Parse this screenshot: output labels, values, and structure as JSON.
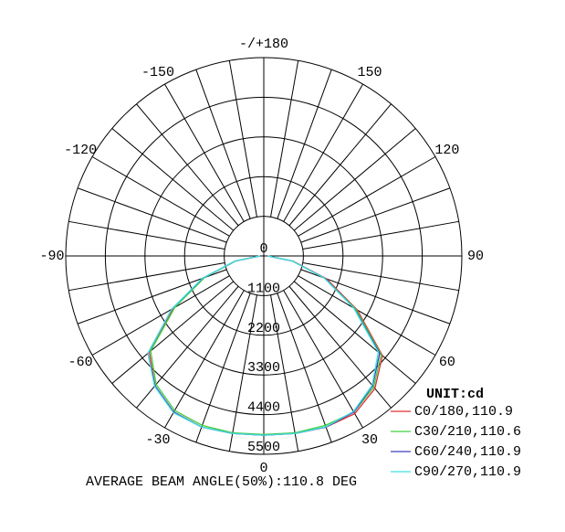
{
  "chart_data": {
    "type": "polar",
    "rlim": [
      0,
      5500
    ],
    "rticks": [
      0,
      1100,
      2200,
      3300,
      4400,
      5500
    ],
    "thetaticks": [
      0,
      30,
      60,
      90,
      120,
      150,
      {
        "value": 180,
        "label": "-/+180"
      },
      -150,
      -120,
      -90,
      -60,
      -30
    ],
    "theta": [
      -90,
      -80,
      -70,
      -60,
      -50,
      -40,
      -30,
      -20,
      -10,
      0,
      10,
      20,
      30,
      40,
      50,
      60,
      70,
      80,
      90
    ],
    "legend_title": "UNIT:cd",
    "series": [
      {
        "name": "C0/180,110.9",
        "color": "#e03030",
        "values": [
          100,
          800,
          1800,
          2900,
          4150,
          4700,
          5000,
          5050,
          5000,
          4970,
          5000,
          5050,
          5050,
          4800,
          4300,
          3000,
          1850,
          820,
          100
        ]
      },
      {
        "name": "C30/210,110.6",
        "color": "#40d040",
        "values": [
          100,
          780,
          1750,
          2850,
          4100,
          4650,
          4950,
          5000,
          4980,
          4950,
          4980,
          5000,
          5000,
          4750,
          4250,
          2950,
          1800,
          800,
          100
        ]
      },
      {
        "name": "C60/240,110.9",
        "color": "#4040c0",
        "values": [
          100,
          800,
          1800,
          2950,
          4200,
          4700,
          5000,
          5050,
          5000,
          4970,
          5000,
          5050,
          5000,
          4700,
          4200,
          2900,
          1800,
          800,
          100
        ]
      },
      {
        "name": "C90/270,110.9",
        "color": "#40e0e0",
        "values": [
          100,
          810,
          1820,
          2950,
          4200,
          4720,
          5020,
          5050,
          5000,
          4970,
          5000,
          5040,
          4980,
          4680,
          4150,
          2880,
          1780,
          790,
          100
        ]
      }
    ],
    "footer": "AVERAGE BEAM ANGLE(50%):110.8 DEG"
  }
}
